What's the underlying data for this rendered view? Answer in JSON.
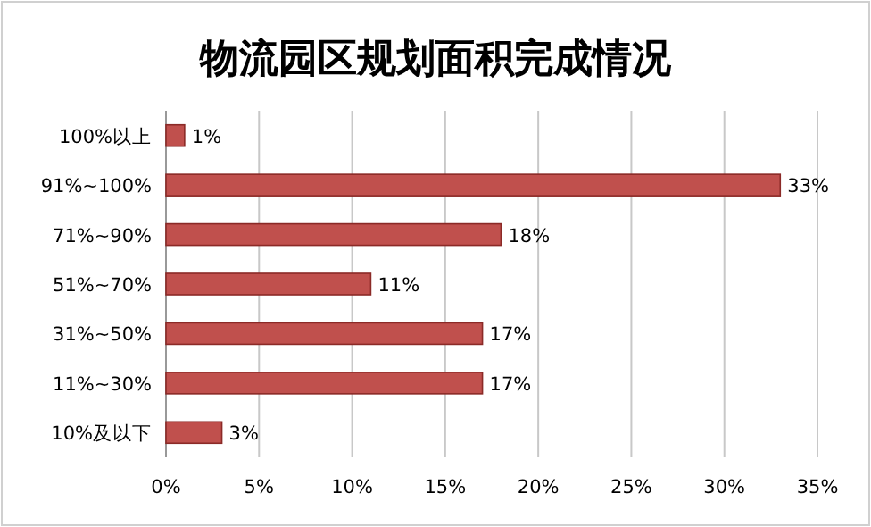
{
  "chart_data": {
    "type": "bar",
    "orientation": "horizontal",
    "title": "物流园区规划面积完成情况",
    "categories": [
      "100%以上",
      "91%~100%",
      "71%~90%",
      "51%~70%",
      "31%~50%",
      "11%~30%",
      "10%及以下"
    ],
    "values": [
      1,
      33,
      18,
      11,
      17,
      17,
      3
    ],
    "value_labels": [
      "1%",
      "33%",
      "18%",
      "11%",
      "17%",
      "17%",
      "3%"
    ],
    "color": "#c0504d",
    "xlim": [
      0,
      35
    ],
    "xticks": [
      {
        "value": 0,
        "label": "0%"
      },
      {
        "value": 5,
        "label": "5%"
      },
      {
        "value": 10,
        "label": "10%"
      },
      {
        "value": 15,
        "label": "15%"
      },
      {
        "value": 20,
        "label": "20%"
      },
      {
        "value": 25,
        "label": "25%"
      },
      {
        "value": 30,
        "label": "30%"
      },
      {
        "value": 35,
        "label": "35%"
      }
    ],
    "grid": "x"
  }
}
